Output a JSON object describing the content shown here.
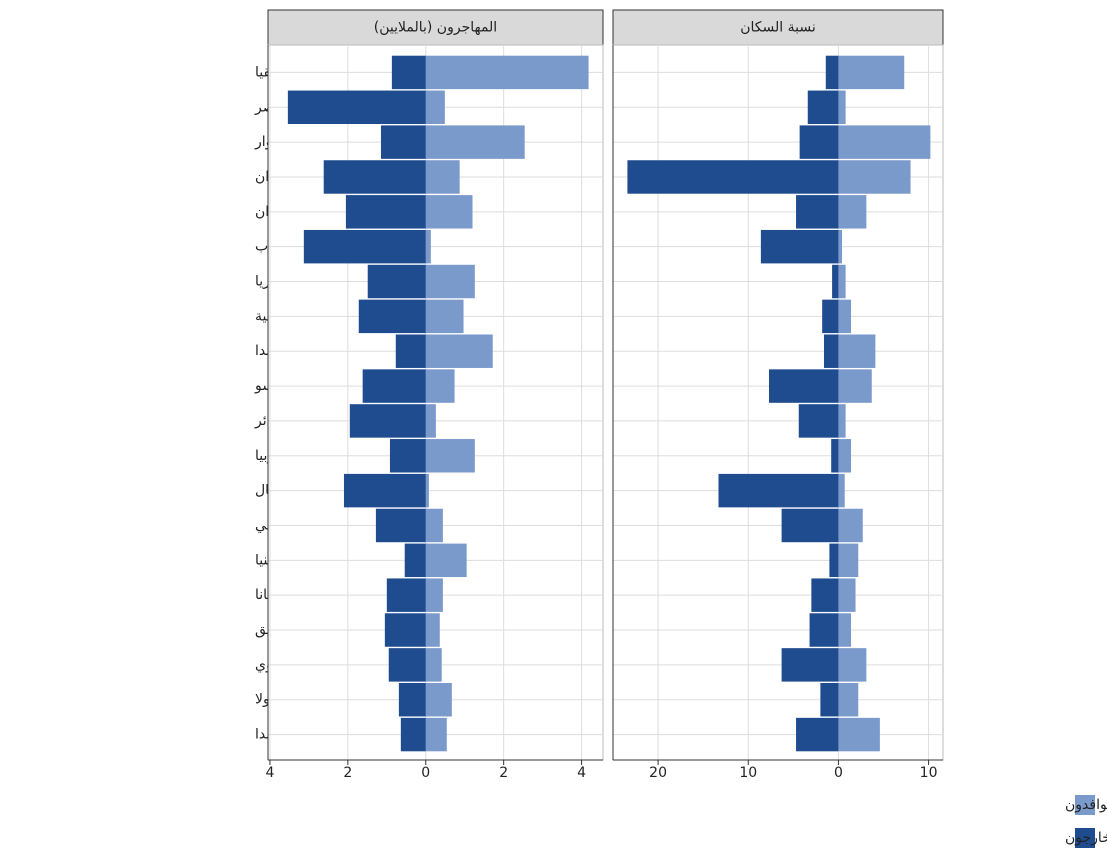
{
  "chart_data": {
    "type": "bar",
    "orientation": "horizontal",
    "grid": true,
    "legend_position": "bottom-right",
    "categories": [
      "جنوب أفريقيا",
      "مصر",
      "كوت ديفوار",
      "جنوب السودان",
      "السودان",
      "المغرب",
      "نيجيريا",
      "جمهورية الكونغو الديمقراطية",
      "أوغندا",
      "بوركينا فاسو",
      "الجزائر",
      "إثيوبيا",
      "الصومال",
      "مالي",
      "كينيا",
      "غانا",
      "موزامبيق",
      "زمبابوي",
      "أنغولا",
      "رواندا"
    ],
    "legend": [
      {
        "name": "المهاجرون الوافدون",
        "color": "#7b9acc"
      },
      {
        "name": "المهاجرون الخارجون",
        "color": "#1f4b8f"
      }
    ],
    "panels": [
      {
        "title": "المهاجرون (بالملايين)",
        "xlim": [
          -4.05,
          4.55
        ],
        "xticks": [
          {
            "value": -4,
            "label": "4"
          },
          {
            "value": -2,
            "label": "2"
          },
          0,
          2,
          4
        ],
        "series": [
          {
            "values": [
              4.18,
              0.49,
              2.54,
              0.87,
              1.2,
              0.13,
              1.26,
              0.97,
              1.72,
              0.74,
              0.26,
              1.26,
              0.08,
              0.44,
              1.05,
              0.44,
              0.36,
              0.41,
              0.67,
              0.54
            ]
          },
          {
            "values": [
              -0.87,
              -3.54,
              -1.15,
              -2.62,
              -2.05,
              -3.13,
              -1.49,
              -1.72,
              -0.77,
              -1.62,
              -1.95,
              -0.92,
              -2.1,
              -1.28,
              -0.54,
              -1.0,
              -1.05,
              -0.95,
              -0.69,
              -0.64
            ]
          }
        ]
      },
      {
        "title": "نسبة السكان",
        "xlim": [
          -25,
          11.6
        ],
        "xticks": [
          {
            "value": -20,
            "label": "20"
          },
          {
            "value": -10,
            "label": "10"
          },
          0,
          10
        ],
        "series": [
          {
            "values": [
              7.3,
              0.8,
              10.2,
              8.0,
              3.1,
              0.4,
              0.8,
              1.4,
              4.1,
              3.7,
              0.8,
              1.4,
              0.7,
              2.7,
              2.2,
              1.9,
              1.4,
              3.1,
              2.2,
              4.6
            ]
          },
          {
            "values": [
              -1.4,
              -3.4,
              -4.3,
              -23.4,
              -4.7,
              -8.6,
              -0.7,
              -1.8,
              -1.6,
              -7.7,
              -4.4,
              -0.8,
              -13.3,
              -6.3,
              -1.0,
              -3.0,
              -3.2,
              -6.3,
              -2.0,
              -4.7
            ]
          }
        ]
      }
    ]
  }
}
